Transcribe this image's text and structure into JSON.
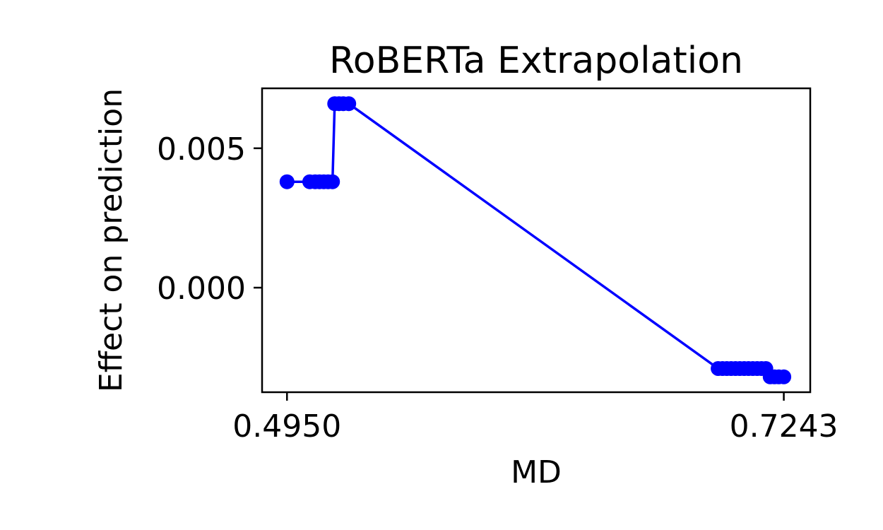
{
  "chart_data": {
    "type": "line",
    "title": "RoBERTa Extrapolation",
    "xlabel": "MD",
    "ylabel": "Effect on prediction",
    "xlim": [
      0.4835,
      0.7365
    ],
    "ylim": [
      -0.00375,
      0.00715
    ],
    "xticks": [
      {
        "value": 0.495,
        "label": "0.4950"
      },
      {
        "value": 0.7243,
        "label": "0.7243"
      }
    ],
    "yticks": [
      {
        "value": 0.0,
        "label": "0.000"
      },
      {
        "value": 0.005,
        "label": "0.005"
      }
    ],
    "grid": false,
    "legend": "none",
    "series": [
      {
        "color": "#0000ff",
        "marker": "circle",
        "x": [
          0.495,
          0.5055,
          0.508,
          0.51,
          0.512,
          0.514,
          0.516,
          0.517,
          0.519,
          0.521,
          0.5235,
          0.694,
          0.696,
          0.698,
          0.7,
          0.702,
          0.704,
          0.706,
          0.708,
          0.71,
          0.712,
          0.714,
          0.716,
          0.718,
          0.72,
          0.722,
          0.7243
        ],
        "y": [
          0.0038,
          0.0038,
          0.0038,
          0.0038,
          0.0038,
          0.0038,
          0.0038,
          0.0066,
          0.0066,
          0.0066,
          0.0066,
          -0.0029,
          -0.0029,
          -0.0029,
          -0.0029,
          -0.0029,
          -0.0029,
          -0.0029,
          -0.0029,
          -0.0029,
          -0.0029,
          -0.0029,
          -0.0029,
          -0.0032,
          -0.0032,
          -0.0032,
          -0.0032
        ]
      }
    ]
  }
}
